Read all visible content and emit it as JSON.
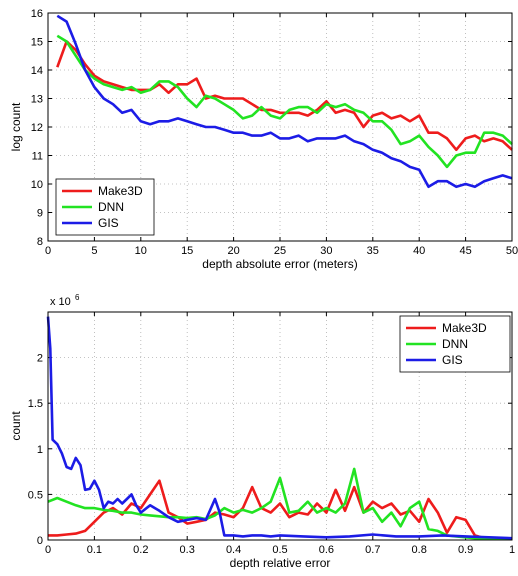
{
  "chart_data": [
    {
      "type": "line",
      "xlabel": "depth absolute error (meters)",
      "ylabel": "log count",
      "xlim": [
        0,
        50
      ],
      "ylim": [
        8,
        16
      ],
      "xticks": [
        "0",
        "5",
        "10",
        "15",
        "20",
        "25",
        "30",
        "35",
        "40",
        "45",
        "50"
      ],
      "yticks": [
        "8",
        "9",
        "10",
        "11",
        "12",
        "13",
        "14",
        "15",
        "16"
      ],
      "grid": true,
      "legend_position": "bottom-left",
      "series": [
        {
          "name": "Make3D",
          "color": "#ee1c1c",
          "x": [
            1,
            2,
            3,
            4,
            5,
            6,
            7,
            8,
            9,
            10,
            11,
            12,
            13,
            14,
            15,
            16,
            17,
            18,
            19,
            20,
            21,
            22,
            23,
            24,
            25,
            26,
            27,
            28,
            29,
            30,
            31,
            32,
            33,
            34,
            35,
            36,
            37,
            38,
            39,
            40,
            41,
            42,
            43,
            44,
            45,
            46,
            47,
            48,
            49,
            50
          ],
          "y": [
            14.1,
            15.0,
            14.7,
            14.2,
            13.8,
            13.6,
            13.5,
            13.4,
            13.3,
            13.3,
            13.3,
            13.5,
            13.2,
            13.5,
            13.5,
            13.7,
            13.0,
            13.1,
            13.0,
            13.0,
            13.0,
            12.8,
            12.6,
            12.6,
            12.5,
            12.5,
            12.5,
            12.4,
            12.6,
            12.9,
            12.5,
            12.6,
            12.5,
            12.0,
            12.4,
            12.5,
            12.3,
            12.4,
            12.2,
            12.4,
            11.8,
            11.8,
            11.6,
            11.2,
            11.6,
            11.7,
            11.5,
            11.6,
            11.5,
            11.2
          ]
        },
        {
          "name": "DNN",
          "color": "#22e322",
          "x": [
            1,
            2,
            3,
            4,
            5,
            6,
            7,
            8,
            9,
            10,
            11,
            12,
            13,
            14,
            15,
            16,
            17,
            18,
            19,
            20,
            21,
            22,
            23,
            24,
            25,
            26,
            27,
            28,
            29,
            30,
            31,
            32,
            33,
            34,
            35,
            36,
            37,
            38,
            39,
            40,
            41,
            42,
            43,
            44,
            45,
            46,
            47,
            48,
            49,
            50
          ],
          "y": [
            15.2,
            15.0,
            14.5,
            14.0,
            13.7,
            13.5,
            13.4,
            13.3,
            13.4,
            13.2,
            13.3,
            13.6,
            13.6,
            13.4,
            13.0,
            12.7,
            13.1,
            13.0,
            12.8,
            12.6,
            12.3,
            12.4,
            12.7,
            12.4,
            12.3,
            12.6,
            12.7,
            12.7,
            12.5,
            12.8,
            12.7,
            12.8,
            12.6,
            12.5,
            12.2,
            12.2,
            11.9,
            11.4,
            11.5,
            11.7,
            11.3,
            11.0,
            10.6,
            11.0,
            11.1,
            11.1,
            11.8,
            11.8,
            11.7,
            11.4
          ]
        },
        {
          "name": "GIS",
          "color": "#1c1ce6",
          "x": [
            1,
            2,
            3,
            4,
            5,
            6,
            7,
            8,
            9,
            10,
            11,
            12,
            13,
            14,
            15,
            16,
            17,
            18,
            19,
            20,
            21,
            22,
            23,
            24,
            25,
            26,
            27,
            28,
            29,
            30,
            31,
            32,
            33,
            34,
            35,
            36,
            37,
            38,
            39,
            40,
            41,
            42,
            43,
            44,
            45,
            46,
            47,
            48,
            49,
            50
          ],
          "y": [
            15.9,
            15.7,
            14.9,
            14.0,
            13.4,
            13.0,
            12.8,
            12.5,
            12.6,
            12.2,
            12.1,
            12.2,
            12.2,
            12.3,
            12.2,
            12.1,
            12.0,
            12.0,
            11.9,
            11.8,
            11.8,
            11.7,
            11.7,
            11.8,
            11.6,
            11.6,
            11.7,
            11.5,
            11.6,
            11.6,
            11.6,
            11.7,
            11.5,
            11.4,
            11.2,
            11.1,
            10.9,
            10.8,
            10.6,
            10.5,
            9.9,
            10.1,
            10.1,
            9.9,
            10.0,
            9.9,
            10.1,
            10.2,
            10.3,
            10.2
          ]
        }
      ]
    },
    {
      "type": "line",
      "xlabel": "depth relative error",
      "ylabel": "count",
      "scale_label": "x 10",
      "scale_exponent": "6",
      "xlim": [
        0,
        1
      ],
      "ylim": [
        0,
        2.5
      ],
      "xticks": [
        "0",
        "0.1",
        "0.2",
        "0.3",
        "0.4",
        "0.5",
        "0.6",
        "0.7",
        "0.8",
        "0.9",
        "1"
      ],
      "yticks": [
        "0",
        "0.5",
        "1",
        "1.5",
        "2"
      ],
      "grid": true,
      "legend_position": "top-right",
      "series": [
        {
          "name": "Make3D",
          "color": "#ee1c1c",
          "x": [
            0,
            0.02,
            0.04,
            0.06,
            0.08,
            0.1,
            0.12,
            0.14,
            0.16,
            0.18,
            0.2,
            0.22,
            0.24,
            0.26,
            0.28,
            0.3,
            0.32,
            0.34,
            0.36,
            0.38,
            0.4,
            0.42,
            0.44,
            0.46,
            0.48,
            0.5,
            0.52,
            0.54,
            0.56,
            0.58,
            0.6,
            0.62,
            0.64,
            0.66,
            0.68,
            0.7,
            0.72,
            0.74,
            0.76,
            0.78,
            0.8,
            0.82,
            0.84,
            0.86,
            0.88,
            0.9,
            0.92,
            0.94,
            0.96,
            0.98,
            1.0
          ],
          "y": [
            0.05,
            0.05,
            0.06,
            0.07,
            0.1,
            0.2,
            0.3,
            0.35,
            0.28,
            0.4,
            0.35,
            0.5,
            0.65,
            0.3,
            0.25,
            0.18,
            0.2,
            0.22,
            0.3,
            0.28,
            0.25,
            0.35,
            0.58,
            0.35,
            0.3,
            0.4,
            0.25,
            0.3,
            0.28,
            0.4,
            0.3,
            0.55,
            0.32,
            0.58,
            0.3,
            0.42,
            0.35,
            0.4,
            0.28,
            0.32,
            0.2,
            0.45,
            0.3,
            0.08,
            0.25,
            0.22,
            0.05,
            0.02,
            0.01,
            0.01,
            0.01
          ]
        },
        {
          "name": "DNN",
          "color": "#22e322",
          "x": [
            0,
            0.02,
            0.04,
            0.06,
            0.08,
            0.1,
            0.12,
            0.14,
            0.16,
            0.18,
            0.2,
            0.22,
            0.24,
            0.26,
            0.28,
            0.3,
            0.32,
            0.34,
            0.36,
            0.38,
            0.4,
            0.42,
            0.44,
            0.46,
            0.48,
            0.5,
            0.52,
            0.54,
            0.56,
            0.58,
            0.6,
            0.62,
            0.64,
            0.66,
            0.68,
            0.7,
            0.72,
            0.74,
            0.76,
            0.78,
            0.8,
            0.82,
            0.84,
            0.86,
            0.88,
            0.9,
            0.92,
            0.94,
            0.96,
            0.98,
            1.0
          ],
          "y": [
            0.42,
            0.46,
            0.42,
            0.38,
            0.35,
            0.35,
            0.33,
            0.32,
            0.3,
            0.3,
            0.28,
            0.27,
            0.26,
            0.25,
            0.25,
            0.24,
            0.25,
            0.23,
            0.27,
            0.35,
            0.3,
            0.33,
            0.3,
            0.35,
            0.42,
            0.68,
            0.3,
            0.32,
            0.42,
            0.3,
            0.35,
            0.3,
            0.4,
            0.78,
            0.3,
            0.35,
            0.2,
            0.3,
            0.15,
            0.35,
            0.42,
            0.12,
            0.1,
            0.05,
            0.04,
            0.03,
            0.02,
            0.01,
            0.01,
            0.01,
            0.01
          ]
        },
        {
          "name": "GIS",
          "color": "#1c1ce6",
          "x": [
            0,
            0.005,
            0.01,
            0.02,
            0.03,
            0.04,
            0.05,
            0.06,
            0.07,
            0.08,
            0.09,
            0.1,
            0.11,
            0.12,
            0.13,
            0.14,
            0.15,
            0.16,
            0.17,
            0.18,
            0.19,
            0.2,
            0.22,
            0.24,
            0.26,
            0.28,
            0.3,
            0.32,
            0.34,
            0.36,
            0.37,
            0.38,
            0.39,
            0.4,
            0.42,
            0.44,
            0.46,
            0.48,
            0.5,
            0.55,
            0.6,
            0.65,
            0.7,
            0.75,
            0.8,
            0.85,
            0.9,
            0.95,
            1.0
          ],
          "y": [
            2.45,
            2.1,
            1.1,
            1.05,
            0.95,
            0.8,
            0.78,
            0.9,
            0.82,
            0.55,
            0.56,
            0.65,
            0.55,
            0.35,
            0.42,
            0.4,
            0.45,
            0.4,
            0.45,
            0.5,
            0.38,
            0.3,
            0.38,
            0.32,
            0.25,
            0.2,
            0.22,
            0.24,
            0.22,
            0.45,
            0.3,
            0.05,
            0.05,
            0.05,
            0.04,
            0.05,
            0.05,
            0.04,
            0.05,
            0.04,
            0.03,
            0.04,
            0.06,
            0.04,
            0.04,
            0.05,
            0.04,
            0.03,
            0.02
          ]
        }
      ]
    }
  ]
}
